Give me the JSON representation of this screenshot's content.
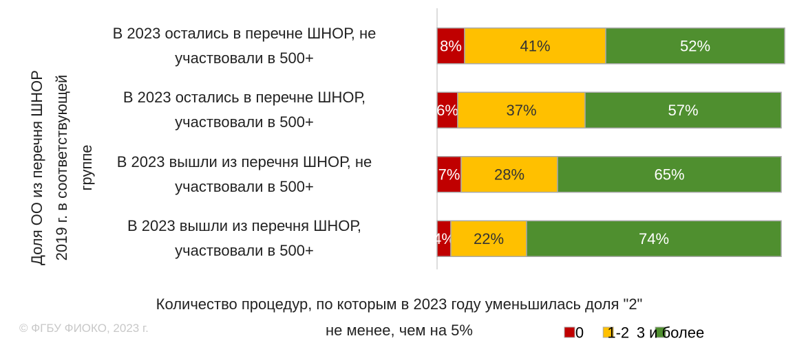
{
  "chart_data": {
    "type": "stacked-bar-horizontal",
    "ylabel": "Доля ОО  из перечня ШНОР\n2019 г. в соответствующей\nгруппе",
    "xlabel": "Количество процедур, по которым в 2023 году уменьшилась доля \"2\"\nне менее, чем на 5%",
    "watermark": "© ФГБУ ФИОКО, 2023 г.",
    "categories": [
      "В 2023 остались в перечне ШНОР, не\nучаствовали в 500+",
      "В 2023 остались в перечне ШНОР,\nучаствовали в 500+",
      "В 2023 вышли из перечня ШНОР, не\nучаствовали в 500+",
      "В 2023 вышли из перечня ШНОР,\nучаствовали в 500+"
    ],
    "xlim": [
      0,
      100
    ],
    "legend": "bottom-right",
    "series": [
      {
        "name": "0",
        "color": "#c00000",
        "values": [
          8,
          6,
          7,
          4
        ],
        "value_labels": [
          "8%",
          "6%",
          "7%",
          "4%"
        ]
      },
      {
        "name": "1-2",
        "color": "#ffc000",
        "values": [
          41,
          37,
          28,
          22
        ],
        "value_labels": [
          "41%",
          "37%",
          "28%",
          "22%"
        ]
      },
      {
        "name": "3 и более",
        "color": "#4f8f2f",
        "values": [
          52,
          57,
          65,
          74
        ],
        "value_labels": [
          "52%",
          "57%",
          "65%",
          "74%"
        ]
      }
    ]
  }
}
